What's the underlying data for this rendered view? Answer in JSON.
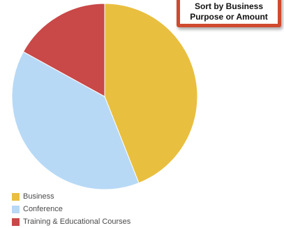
{
  "chart_data": {
    "type": "pie",
    "slices": [
      {
        "label": "Business",
        "value": 44,
        "color": "#e9bf3f"
      },
      {
        "label": "Conference",
        "value": 39,
        "color": "#b7d9f6"
      },
      {
        "label": "Training & Educational Courses",
        "value": 17,
        "color": "#c94848"
      }
    ],
    "start_angle_deg": 0,
    "legend_position": "bottom-left"
  },
  "callout": {
    "text": "Sort by Business\nPurpose or Amount",
    "border_color": "#d04a2f"
  }
}
